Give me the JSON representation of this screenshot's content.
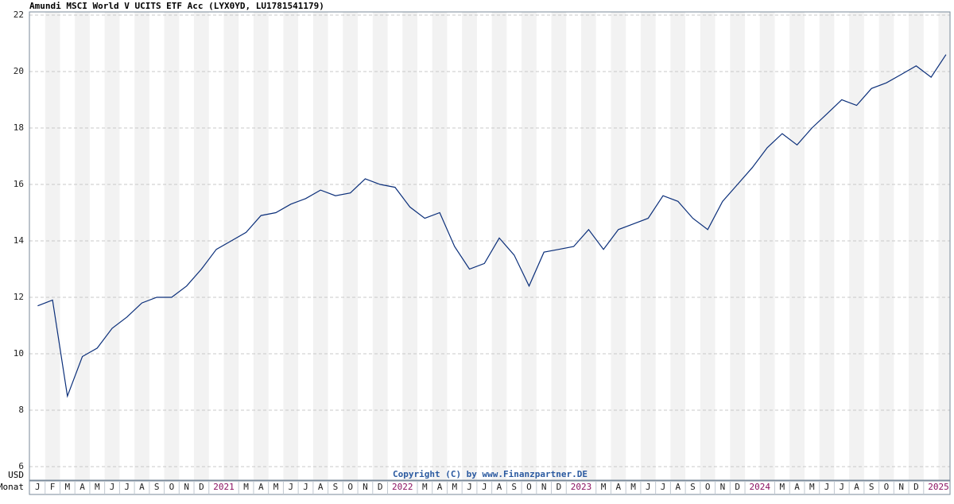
{
  "chart_data": {
    "type": "line",
    "title": "Amundi MSCI World V UCITS ETF Acc (LYX0YD, LU1781541179)",
    "y_unit": "USD",
    "x_label": "Monat",
    "copyright": "Copyright (C) by www.Finanzpartner.DE",
    "categories": [
      "J",
      "F",
      "M",
      "A",
      "M",
      "J",
      "J",
      "A",
      "S",
      "O",
      "N",
      "D",
      "2021",
      null,
      "M",
      "A",
      "M",
      "J",
      "J",
      "A",
      "S",
      "O",
      "N",
      "D",
      "2022",
      null,
      "M",
      "A",
      "M",
      "J",
      "J",
      "A",
      "S",
      "O",
      "N",
      "D",
      "2023",
      null,
      "M",
      "A",
      "M",
      "J",
      "J",
      "A",
      "S",
      "O",
      "N",
      "D",
      "2024",
      null,
      "M",
      "A",
      "M",
      "J",
      "J",
      "A",
      "S",
      "O",
      "N",
      "D",
      "2025",
      null
    ],
    "series": [
      {
        "color": "#0b2f7a",
        "values": [
          11.7,
          11.9,
          8.5,
          9.9,
          10.2,
          10.9,
          11.3,
          11.8,
          12.0,
          12.0,
          12.4,
          13.0,
          13.7,
          14.0,
          14.3,
          14.9,
          15.0,
          15.3,
          15.5,
          15.8,
          15.6,
          15.7,
          16.2,
          16.0,
          15.9,
          15.2,
          14.8,
          15.0,
          13.8,
          13.0,
          13.2,
          14.1,
          13.5,
          12.4,
          13.6,
          13.7,
          13.8,
          14.4,
          13.7,
          14.4,
          14.6,
          14.8,
          15.6,
          15.4,
          14.8,
          14.4,
          15.4,
          16.0,
          16.6,
          17.3,
          17.8,
          17.4,
          18.0,
          18.5,
          19.0,
          18.8,
          19.4,
          19.6,
          19.9,
          20.2,
          19.8,
          20.6
        ]
      }
    ],
    "ylim": [
      6,
      22
    ],
    "yticks": [
      6,
      8,
      10,
      12,
      14,
      16,
      18,
      20,
      22
    ],
    "grid": true
  }
}
